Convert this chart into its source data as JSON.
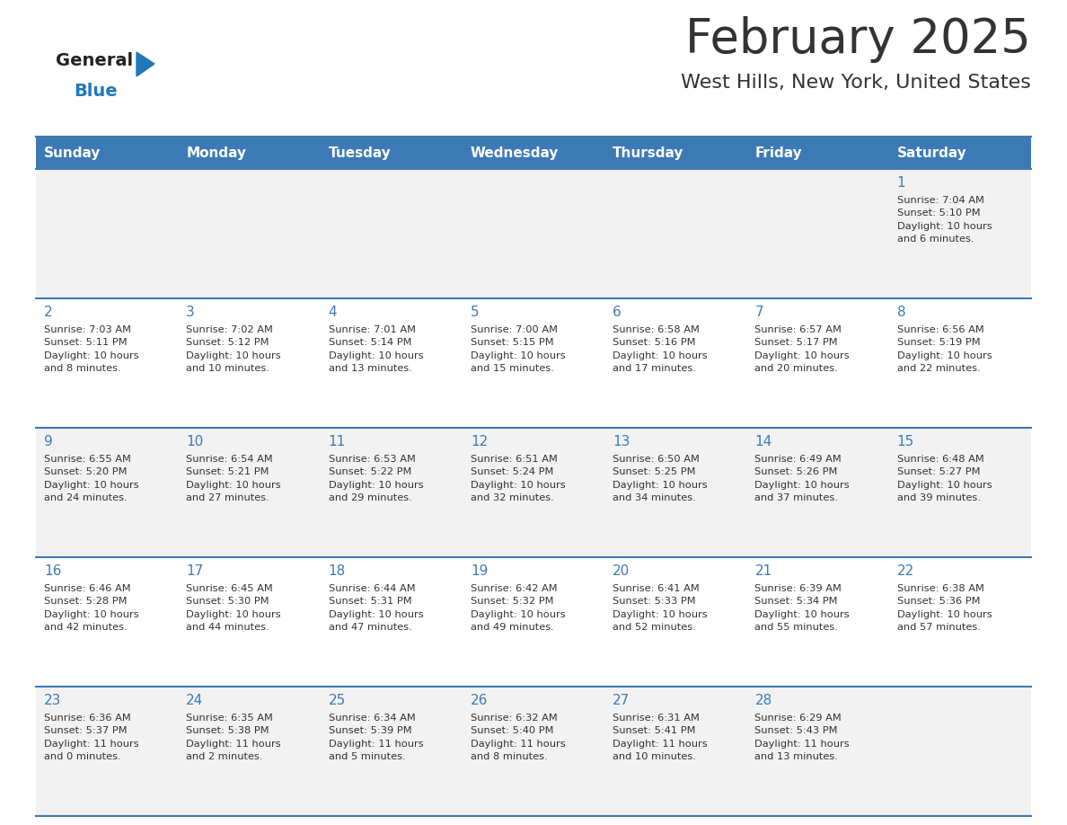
{
  "title": "February 2025",
  "subtitle": "West Hills, New York, United States",
  "header_bg": "#3d7ab5",
  "header_text_color": "#ffffff",
  "day_names": [
    "Sunday",
    "Monday",
    "Tuesday",
    "Wednesday",
    "Thursday",
    "Friday",
    "Saturday"
  ],
  "row_bg_odd": "#f2f2f2",
  "row_bg_even": "#ffffff",
  "border_color": "#3d7ab5",
  "text_color": "#333333",
  "date_color": "#3d7ab5",
  "logo_general_color": "#222222",
  "logo_blue_color": "#2277bb",
  "calendar": [
    [
      {
        "day": "",
        "info": ""
      },
      {
        "day": "",
        "info": ""
      },
      {
        "day": "",
        "info": ""
      },
      {
        "day": "",
        "info": ""
      },
      {
        "day": "",
        "info": ""
      },
      {
        "day": "",
        "info": ""
      },
      {
        "day": "1",
        "info": "Sunrise: 7:04 AM\nSunset: 5:10 PM\nDaylight: 10 hours\nand 6 minutes."
      }
    ],
    [
      {
        "day": "2",
        "info": "Sunrise: 7:03 AM\nSunset: 5:11 PM\nDaylight: 10 hours\nand 8 minutes."
      },
      {
        "day": "3",
        "info": "Sunrise: 7:02 AM\nSunset: 5:12 PM\nDaylight: 10 hours\nand 10 minutes."
      },
      {
        "day": "4",
        "info": "Sunrise: 7:01 AM\nSunset: 5:14 PM\nDaylight: 10 hours\nand 13 minutes."
      },
      {
        "day": "5",
        "info": "Sunrise: 7:00 AM\nSunset: 5:15 PM\nDaylight: 10 hours\nand 15 minutes."
      },
      {
        "day": "6",
        "info": "Sunrise: 6:58 AM\nSunset: 5:16 PM\nDaylight: 10 hours\nand 17 minutes."
      },
      {
        "day": "7",
        "info": "Sunrise: 6:57 AM\nSunset: 5:17 PM\nDaylight: 10 hours\nand 20 minutes."
      },
      {
        "day": "8",
        "info": "Sunrise: 6:56 AM\nSunset: 5:19 PM\nDaylight: 10 hours\nand 22 minutes."
      }
    ],
    [
      {
        "day": "9",
        "info": "Sunrise: 6:55 AM\nSunset: 5:20 PM\nDaylight: 10 hours\nand 24 minutes."
      },
      {
        "day": "10",
        "info": "Sunrise: 6:54 AM\nSunset: 5:21 PM\nDaylight: 10 hours\nand 27 minutes."
      },
      {
        "day": "11",
        "info": "Sunrise: 6:53 AM\nSunset: 5:22 PM\nDaylight: 10 hours\nand 29 minutes."
      },
      {
        "day": "12",
        "info": "Sunrise: 6:51 AM\nSunset: 5:24 PM\nDaylight: 10 hours\nand 32 minutes."
      },
      {
        "day": "13",
        "info": "Sunrise: 6:50 AM\nSunset: 5:25 PM\nDaylight: 10 hours\nand 34 minutes."
      },
      {
        "day": "14",
        "info": "Sunrise: 6:49 AM\nSunset: 5:26 PM\nDaylight: 10 hours\nand 37 minutes."
      },
      {
        "day": "15",
        "info": "Sunrise: 6:48 AM\nSunset: 5:27 PM\nDaylight: 10 hours\nand 39 minutes."
      }
    ],
    [
      {
        "day": "16",
        "info": "Sunrise: 6:46 AM\nSunset: 5:28 PM\nDaylight: 10 hours\nand 42 minutes."
      },
      {
        "day": "17",
        "info": "Sunrise: 6:45 AM\nSunset: 5:30 PM\nDaylight: 10 hours\nand 44 minutes."
      },
      {
        "day": "18",
        "info": "Sunrise: 6:44 AM\nSunset: 5:31 PM\nDaylight: 10 hours\nand 47 minutes."
      },
      {
        "day": "19",
        "info": "Sunrise: 6:42 AM\nSunset: 5:32 PM\nDaylight: 10 hours\nand 49 minutes."
      },
      {
        "day": "20",
        "info": "Sunrise: 6:41 AM\nSunset: 5:33 PM\nDaylight: 10 hours\nand 52 minutes."
      },
      {
        "day": "21",
        "info": "Sunrise: 6:39 AM\nSunset: 5:34 PM\nDaylight: 10 hours\nand 55 minutes."
      },
      {
        "day": "22",
        "info": "Sunrise: 6:38 AM\nSunset: 5:36 PM\nDaylight: 10 hours\nand 57 minutes."
      }
    ],
    [
      {
        "day": "23",
        "info": "Sunrise: 6:36 AM\nSunset: 5:37 PM\nDaylight: 11 hours\nand 0 minutes."
      },
      {
        "day": "24",
        "info": "Sunrise: 6:35 AM\nSunset: 5:38 PM\nDaylight: 11 hours\nand 2 minutes."
      },
      {
        "day": "25",
        "info": "Sunrise: 6:34 AM\nSunset: 5:39 PM\nDaylight: 11 hours\nand 5 minutes."
      },
      {
        "day": "26",
        "info": "Sunrise: 6:32 AM\nSunset: 5:40 PM\nDaylight: 11 hours\nand 8 minutes."
      },
      {
        "day": "27",
        "info": "Sunrise: 6:31 AM\nSunset: 5:41 PM\nDaylight: 11 hours\nand 10 minutes."
      },
      {
        "day": "28",
        "info": "Sunrise: 6:29 AM\nSunset: 5:43 PM\nDaylight: 11 hours\nand 13 minutes."
      },
      {
        "day": "",
        "info": ""
      }
    ]
  ]
}
